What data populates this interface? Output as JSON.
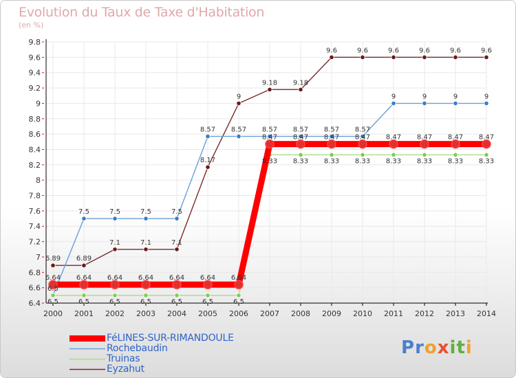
{
  "title": "Evolution du Taux de Taxe d'Habitation",
  "subtitle": "(en %)",
  "brand": {
    "text": "Proxiti",
    "letters": [
      "P",
      "r",
      "o",
      "x",
      "i",
      "t",
      "i"
    ],
    "colors": [
      "#4a7fcc",
      "#4a7fcc",
      "#f0a030",
      "#e85030",
      "#60b040",
      "#60b040",
      "#f0a030"
    ]
  },
  "colors": {
    "background_top": "#ffffff",
    "background_bottom": "#dcdcdc",
    "grid": "#e8e8e8",
    "axis": "#000000",
    "tick_red": "#ff0000"
  },
  "chart_data": {
    "type": "line",
    "title": "Evolution du Taux de Taxe d'Habitation",
    "ylabel": "(en %)",
    "x": [
      "2000",
      "2001",
      "2002",
      "2003",
      "2004",
      "2005",
      "2006",
      "2007",
      "2008",
      "2009",
      "2010",
      "2011",
      "2012",
      "2013",
      "2014"
    ],
    "ylim": [
      6.4,
      9.8
    ],
    "yticks": [
      "6.4",
      "6.6",
      "6.8",
      "7",
      "7.2",
      "7.4",
      "7.6",
      "7.8",
      "8",
      "8.2",
      "8.4",
      "8.6",
      "8.8",
      "9",
      "9.2",
      "9.4",
      "9.6",
      "9.8"
    ],
    "grid": true,
    "legend_position": "bottom-left",
    "series": [
      {
        "name": "FéLINES-SUR-RIMANDOULE",
        "color": "#ff0000",
        "marker": "#e03030",
        "width": "thick",
        "values": [
          6.64,
          6.64,
          6.64,
          6.64,
          6.64,
          6.64,
          6.64,
          8.47,
          8.47,
          8.47,
          8.47,
          8.47,
          8.47,
          8.47,
          8.47
        ],
        "labels": [
          "6.64",
          "6.64",
          "6.64",
          "6.64",
          "6.64",
          "6.64",
          "6.64",
          "8.47",
          "8.47",
          "8.47",
          "8.47",
          "8.47",
          "8.47",
          "8.47",
          "8.47"
        ]
      },
      {
        "name": "Rochebaudin",
        "color": "#6aa0d8",
        "marker": "#3a7cc8",
        "width": "thin",
        "values": [
          6.5,
          7.5,
          7.5,
          7.5,
          7.5,
          8.57,
          8.57,
          8.57,
          8.57,
          8.57,
          8.57,
          9,
          9,
          9,
          9
        ],
        "labels": [
          "6.5",
          "7.5",
          "7.5",
          "7.5",
          "7.5",
          "8.57",
          "8.57",
          "8.57",
          "8.57",
          "8.57",
          "8.57",
          "9",
          "9",
          "9",
          "9"
        ]
      },
      {
        "name": "Truinas",
        "color": "#a8dc88",
        "marker": "#80cc50",
        "width": "thin",
        "values": [
          6.5,
          6.5,
          6.5,
          6.5,
          6.5,
          6.5,
          6.5,
          8.33,
          8.33,
          8.33,
          8.33,
          8.33,
          8.33,
          8.33,
          8.33
        ],
        "labels": [
          "6.5",
          "6.5",
          "6.5",
          "6.5",
          "6.5",
          "6.5",
          "6.5",
          "8.33",
          "8.33",
          "8.33",
          "8.33",
          "8.33",
          "8.33",
          "8.33",
          "8.33"
        ]
      },
      {
        "name": "Eyzahut",
        "color": "#7a2a2a",
        "marker": "#6a1a1a",
        "width": "thin",
        "values": [
          6.89,
          6.89,
          7.1,
          7.1,
          7.1,
          8.17,
          9,
          9.18,
          9.18,
          9.6,
          9.6,
          9.6,
          9.6,
          9.6,
          9.6
        ],
        "labels": [
          "6.89",
          "6.89",
          "7.1",
          "7.1",
          "7.1",
          "8.17",
          "9",
          "9.18",
          "9.18",
          "9.6",
          "9.6",
          "9.6",
          "9.6",
          "9.6",
          "9.6"
        ]
      }
    ]
  }
}
